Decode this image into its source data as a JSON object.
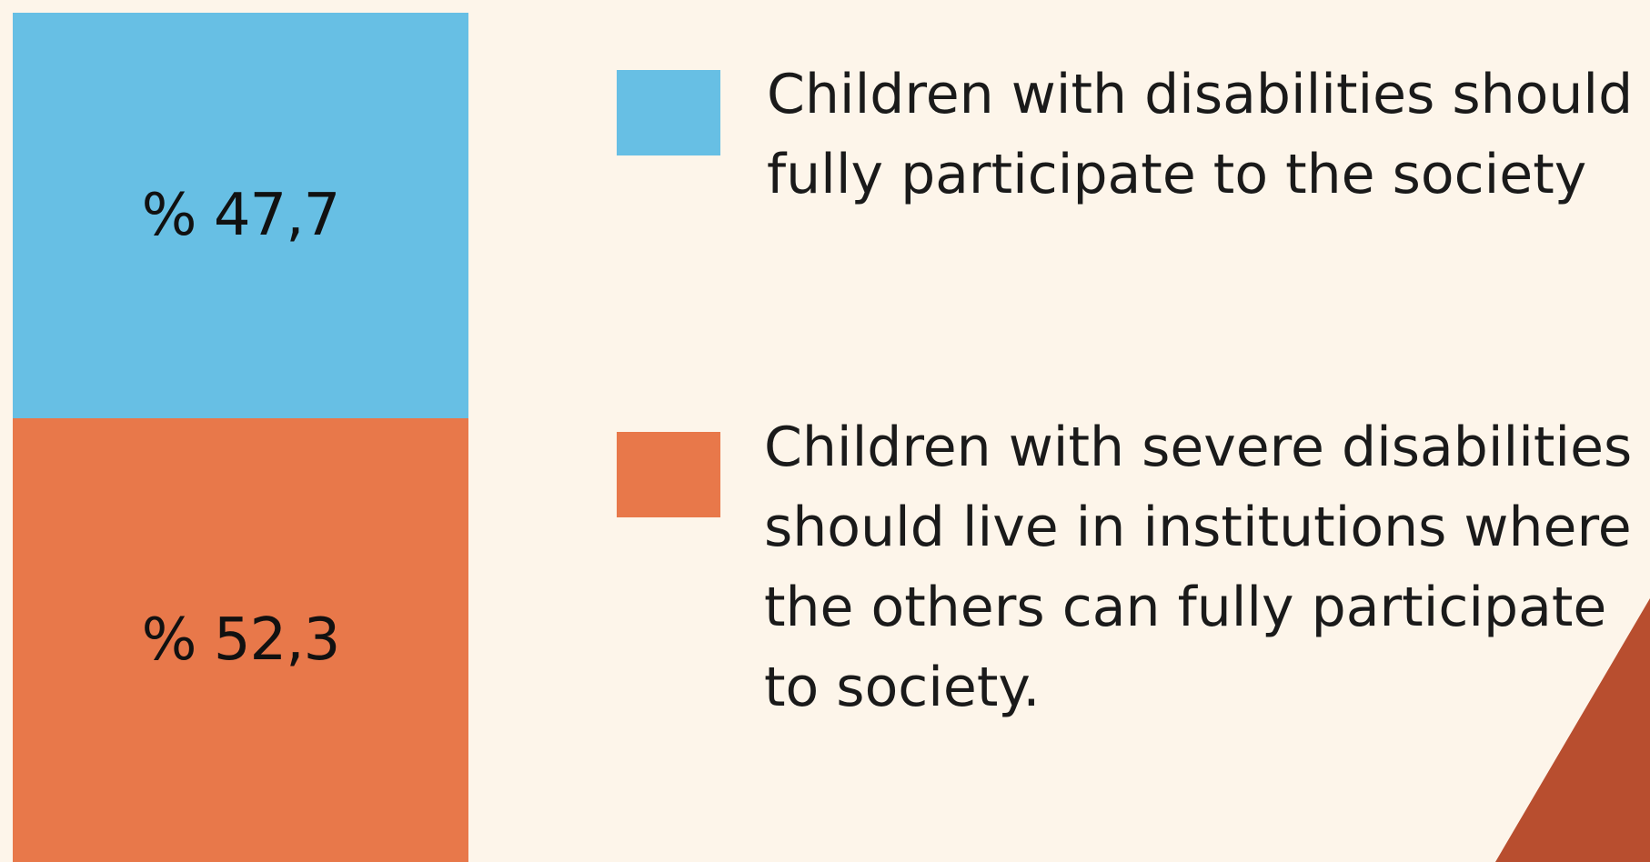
{
  "chart_data": {
    "type": "bar",
    "stacked": true,
    "categories": [
      ""
    ],
    "series": [
      {
        "name": "Children with disabilities should fully participate to the society",
        "values": [
          47.7
        ],
        "label": "% 47,7",
        "color": "#67bfe4"
      },
      {
        "name": "Children with severe disabilities should live in institutions where the others can fully participate to society.",
        "values": [
          52.3
        ],
        "label": "% 52,3",
        "color": "#e8784a"
      }
    ],
    "ylim": [
      0,
      100
    ],
    "grid": false,
    "legend_placement": "right"
  },
  "colors": {
    "background": "#fdf5ea",
    "corner_accent": "#b84e2f"
  }
}
